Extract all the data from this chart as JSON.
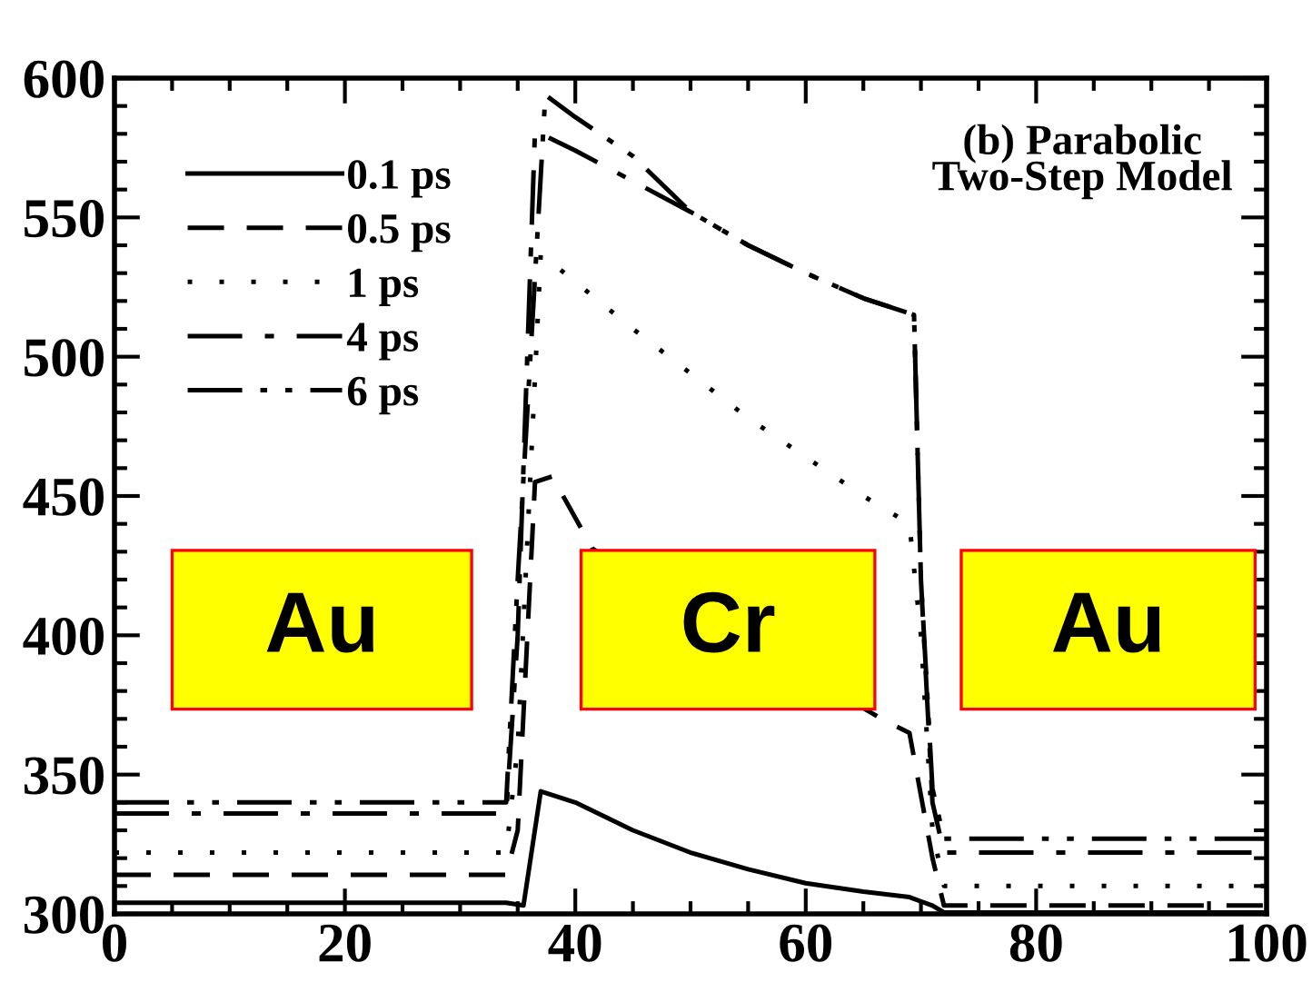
{
  "chart_data": {
    "type": "line",
    "xlim": [
      0,
      100
    ],
    "ylim": [
      300,
      600
    ],
    "xticks": [
      0,
      20,
      40,
      60,
      80,
      100
    ],
    "yticks": [
      300,
      350,
      400,
      450,
      500,
      550,
      600
    ],
    "grid": false,
    "legend": "top left",
    "marker": "none",
    "series": [
      {
        "name": "0.1 ps",
        "color": "#000000",
        "line_style": "solid",
        "x": [
          0,
          34,
          35.5,
          37,
          40,
          45,
          50,
          55,
          60,
          65,
          69,
          71,
          72,
          100
        ],
        "values": [
          304,
          304,
          303,
          344,
          340,
          330,
          322,
          316,
          311,
          308,
          306,
          303,
          300.5,
          300.5
        ]
      },
      {
        "name": "0.5 ps",
        "color": "#000000",
        "line_style": "dashed",
        "x": [
          0,
          34,
          35,
          36.5,
          38,
          41.5,
          67,
          69,
          71,
          72,
          100
        ],
        "values": [
          314,
          314,
          330,
          455,
          457,
          431,
          369,
          365,
          320,
          303,
          303
        ]
      },
      {
        "name": "1 ps",
        "color": "#000000",
        "line_style": "dotted",
        "x": [
          0,
          34,
          35,
          37,
          45,
          55,
          65,
          69,
          70,
          71,
          72,
          100
        ],
        "values": [
          322,
          322,
          360,
          537,
          510,
          478,
          450,
          440,
          400,
          330,
          310,
          310
        ]
      },
      {
        "name": "4 ps",
        "color": "#000000",
        "line_style": "dashdot",
        "x": [
          0,
          34,
          35,
          36.5,
          40,
          45,
          50,
          55,
          60,
          65,
          69.4,
          70,
          71,
          72,
          100
        ],
        "values": [
          336,
          336,
          400,
          581,
          574,
          563,
          552,
          540,
          530,
          521,
          515,
          420,
          340,
          322,
          322
        ]
      },
      {
        "name": "6 ps",
        "color": "#000000",
        "line_style": "dashdotdot",
        "x": [
          0,
          34,
          35,
          37.4,
          40,
          45,
          50,
          55,
          60,
          65,
          69.4,
          70,
          71,
          72,
          100
        ],
        "values": [
          340,
          340,
          420,
          594,
          586,
          572,
          552,
          540,
          530,
          521,
          515,
          420,
          345,
          327,
          327
        ]
      }
    ],
    "annotations": [
      "(b) Parabolic\nTwo-Step Model",
      "Au",
      "Cr",
      "Au"
    ]
  }
}
